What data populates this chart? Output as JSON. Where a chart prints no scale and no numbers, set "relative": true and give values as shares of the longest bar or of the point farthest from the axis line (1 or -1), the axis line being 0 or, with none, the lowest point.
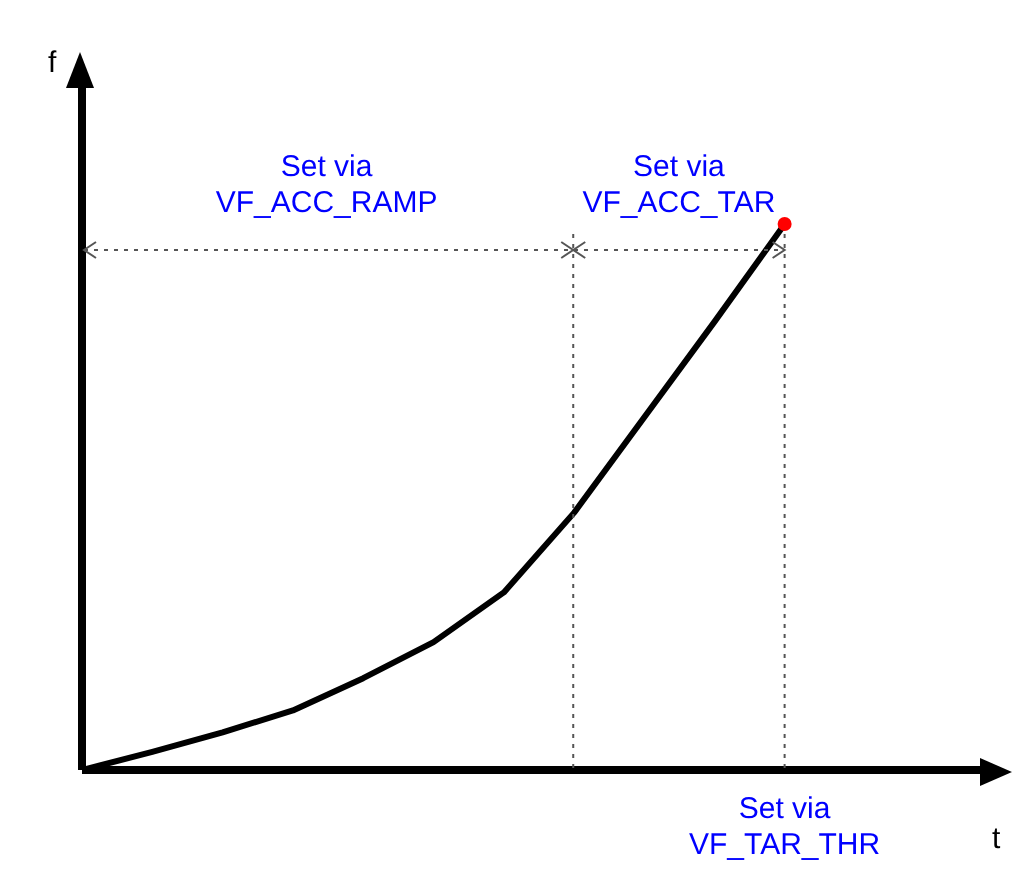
{
  "chart_data": {
    "type": "line",
    "xlabel": "t",
    "ylabel": "f",
    "relative": true,
    "categories": [
      null,
      null,
      null,
      null,
      null,
      null,
      null,
      null,
      null,
      null,
      null,
      null,
      null,
      null
    ],
    "series": [
      {
        "color": "#000000",
        "values": [
          0,
          0.033,
          0.069,
          0.109,
          0.168,
          0.234,
          0.325,
          0.471,
          0.646,
          0.821,
          1.0,
          null,
          null,
          null
        ]
      }
    ],
    "annotations": [
      "Set via\nVF_ACC_RAMP",
      "Set via\nVF_ACC_TAR",
      "Set via\nVF_TAR_THR"
    ],
    "marker": "none",
    "line_style": "solid"
  }
}
